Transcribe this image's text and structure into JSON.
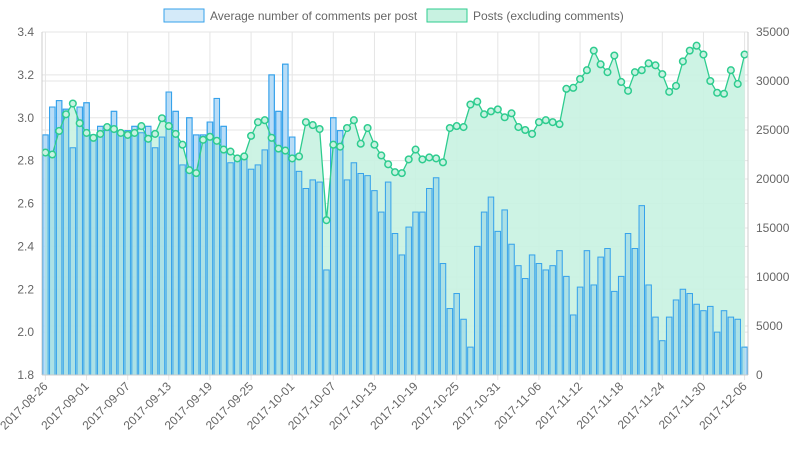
{
  "chart_data": {
    "type": "bar+line",
    "title": "",
    "legend": {
      "placement": "top",
      "entries": [
        {
          "label": "Average number of comments per post",
          "color": "#36a2eb"
        },
        {
          "label": "Posts (excluding comments)",
          "color": "#2ecc8f"
        }
      ]
    },
    "colors": {
      "bar_fill": "#d4eaf9",
      "bar_stroke": "#36a2eb",
      "line": "#2ecc8f",
      "area": "#c8f2e1",
      "grid": "#e5e5e5",
      "text": "#666666"
    },
    "grid": true,
    "x_ticks": [
      "2017-08-26",
      "2017-09-01",
      "2017-09-07",
      "2017-09-13",
      "2017-09-19",
      "2017-09-25",
      "2017-10-01",
      "2017-10-07",
      "2017-10-13",
      "2017-10-19",
      "2017-10-25",
      "2017-10-31",
      "2017-11-06",
      "2017-11-12",
      "2017-11-18",
      "2017-11-24",
      "2017-11-30",
      "2017-12-06"
    ],
    "x_start": "2017-08-26",
    "n_days": 103,
    "y_left": {
      "range": [
        1.8,
        3.4
      ],
      "ticks": [
        "1.8",
        "2.0",
        "2.2",
        "2.4",
        "2.6",
        "2.8",
        "3.0",
        "3.2",
        "3.4"
      ]
    },
    "y_right": {
      "range": [
        0,
        35000
      ],
      "ticks": [
        "0",
        "5000",
        "10000",
        "15000",
        "20000",
        "25000",
        "30000",
        "35000"
      ]
    },
    "series": [
      {
        "name": "Average number of comments per post",
        "type": "bar",
        "axis": "left",
        "values": [
          2.92,
          3.05,
          3.08,
          3.04,
          2.86,
          3.05,
          3.07,
          2.92,
          2.96,
          2.94,
          3.03,
          2.94,
          2.94,
          2.96,
          2.93,
          2.96,
          2.86,
          2.91,
          3.12,
          3.03,
          2.78,
          3.0,
          2.92,
          2.92,
          2.98,
          3.09,
          2.96,
          2.79,
          2.8,
          2.82,
          2.76,
          2.78,
          2.85,
          3.2,
          3.03,
          3.25,
          2.91,
          2.75,
          2.67,
          2.71,
          2.7,
          2.29,
          3.0,
          2.94,
          2.71,
          2.79,
          2.74,
          2.73,
          2.66,
          2.56,
          2.7,
          2.46,
          2.36,
          2.49,
          2.56,
          2.56,
          2.67,
          2.72,
          2.32,
          2.11,
          2.18,
          2.06,
          1.93,
          2.4,
          2.56,
          2.63,
          2.47,
          2.57,
          2.41,
          2.31,
          2.25,
          2.36,
          2.32,
          2.29,
          2.31,
          2.38,
          2.26,
          2.08,
          2.21,
          2.38,
          2.22,
          2.35,
          2.39,
          2.19,
          2.26,
          2.46,
          2.39,
          2.59,
          2.22,
          2.07,
          1.96,
          2.07,
          2.15,
          2.2,
          2.18,
          2.13,
          2.1,
          2.12,
          2.0,
          2.1,
          2.07,
          2.06,
          1.93
        ]
      },
      {
        "name": "Posts (excluding comments)",
        "type": "line",
        "axis": "right",
        "values": [
          22700,
          22500,
          24900,
          26600,
          27700,
          25700,
          24700,
          24200,
          24600,
          25300,
          25100,
          24700,
          24500,
          24700,
          25400,
          24100,
          24600,
          26200,
          25400,
          24600,
          23500,
          20900,
          20600,
          24000,
          24300,
          23900,
          23000,
          22800,
          22100,
          22300,
          24400,
          25800,
          26000,
          24200,
          23100,
          22900,
          22100,
          22300,
          25800,
          25500,
          25100,
          15800,
          23500,
          23300,
          25200,
          26000,
          23600,
          25200,
          23500,
          22400,
          21500,
          20700,
          20600,
          22000,
          23000,
          22000,
          22200,
          22100,
          21700,
          25200,
          25400,
          25300,
          27600,
          27900,
          26600,
          26900,
          27100,
          26300,
          26700,
          25300,
          25000,
          24600,
          25800,
          26000,
          25800,
          25600,
          29200,
          29300,
          30200,
          31100,
          33100,
          31700,
          30900,
          32600,
          29900,
          29000,
          30900,
          31100,
          31800,
          31600,
          30700,
          28900,
          29500,
          32000,
          33100,
          33600,
          32700,
          30000,
          28800,
          28700,
          31100,
          29700,
          32700
        ]
      }
    ]
  }
}
